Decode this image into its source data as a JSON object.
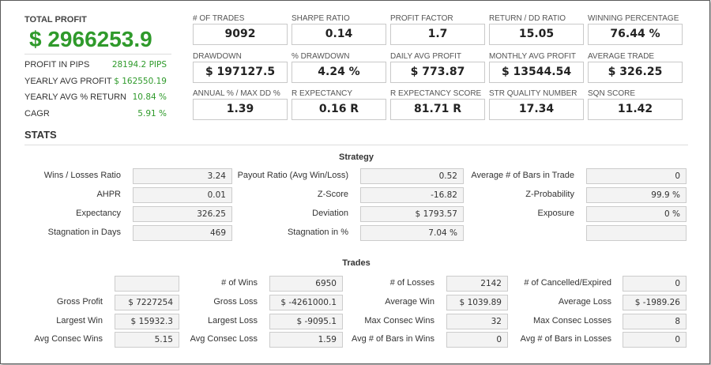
{
  "summary": {
    "total_profit_label": "TOTAL PROFIT",
    "total_profit_value": "$ 2966253.9",
    "rows": [
      {
        "label": "PROFIT IN PIPS",
        "value": "28194.2 PIPS"
      },
      {
        "label": "YEARLY AVG PROFIT",
        "value": "$ 162550.19"
      },
      {
        "label": "YEARLY AVG % RETURN",
        "value": "10.84 %"
      },
      {
        "label": "CAGR",
        "value": "5.91 %"
      }
    ]
  },
  "metrics": [
    {
      "label": "# OF TRADES",
      "value": "9092"
    },
    {
      "label": "SHARPE RATIO",
      "value": "0.14"
    },
    {
      "label": "PROFIT FACTOR",
      "value": "1.7"
    },
    {
      "label": "RETURN / DD RATIO",
      "value": "15.05"
    },
    {
      "label": "WINNING PERCENTAGE",
      "value": "76.44 %"
    },
    {
      "label": "DRAWDOWN",
      "value": "$ 197127.5"
    },
    {
      "label": "% DRAWDOWN",
      "value": "4.24 %"
    },
    {
      "label": "DAILY AVG PROFIT",
      "value": "$ 773.87"
    },
    {
      "label": "MONTHLY AVG PROFIT",
      "value": "$ 13544.54"
    },
    {
      "label": "AVERAGE TRADE",
      "value": "$ 326.25"
    },
    {
      "label": "ANNUAL % / MAX DD %",
      "value": "1.39"
    },
    {
      "label": "R EXPECTANCY",
      "value": "0.16 R"
    },
    {
      "label": "R EXPECTANCY SCORE",
      "value": "81.71 R"
    },
    {
      "label": "STR QUALITY NUMBER",
      "value": "17.34"
    },
    {
      "label": "SQN SCORE",
      "value": "11.42"
    }
  ],
  "stats_title": "STATS",
  "strategy": {
    "title": "Strategy",
    "rows": [
      [
        {
          "label": "Wins / Losses Ratio",
          "value": "3.24"
        },
        {
          "label": "Payout Ratio (Avg Win/Loss)",
          "value": "0.52"
        },
        {
          "label": "Average # of Bars in Trade",
          "value": "0"
        }
      ],
      [
        {
          "label": "AHPR",
          "value": "0.01"
        },
        {
          "label": "Z-Score",
          "value": "-16.82"
        },
        {
          "label": "Z-Probability",
          "value": "99.9 %"
        }
      ],
      [
        {
          "label": "Expectancy",
          "value": "326.25"
        },
        {
          "label": "Deviation",
          "value": "$ 1793.57"
        },
        {
          "label": "Exposure",
          "value": "0 %"
        }
      ],
      [
        {
          "label": "Stagnation in Days",
          "value": "469"
        },
        {
          "label": "Stagnation in %",
          "value": "7.04 %"
        },
        {
          "label": "",
          "value": ""
        }
      ]
    ]
  },
  "trades": {
    "title": "Trades",
    "rows": [
      [
        {
          "label": "",
          "value": ""
        },
        {
          "label": "# of Wins",
          "value": "6950"
        },
        {
          "label": "# of Losses",
          "value": "2142"
        },
        {
          "label": "# of Cancelled/Expired",
          "value": "0"
        }
      ],
      [
        {
          "label": "Gross Profit",
          "value": "$ 7227254"
        },
        {
          "label": "Gross Loss",
          "value": "$ -4261000.1"
        },
        {
          "label": "Average Win",
          "value": "$ 1039.89"
        },
        {
          "label": "Average Loss",
          "value": "$ -1989.26"
        }
      ],
      [
        {
          "label": "Largest Win",
          "value": "$ 15932.3"
        },
        {
          "label": "Largest Loss",
          "value": "$ -9095.1"
        },
        {
          "label": "Max Consec Wins",
          "value": "32"
        },
        {
          "label": "Max Consec Losses",
          "value": "8"
        }
      ],
      [
        {
          "label": "Avg Consec Wins",
          "value": "5.15"
        },
        {
          "label": "Avg Consec Loss",
          "value": "1.59"
        },
        {
          "label": "Avg # of Bars in Wins",
          "value": "0"
        },
        {
          "label": "Avg # of Bars in Losses",
          "value": "0"
        }
      ]
    ]
  }
}
